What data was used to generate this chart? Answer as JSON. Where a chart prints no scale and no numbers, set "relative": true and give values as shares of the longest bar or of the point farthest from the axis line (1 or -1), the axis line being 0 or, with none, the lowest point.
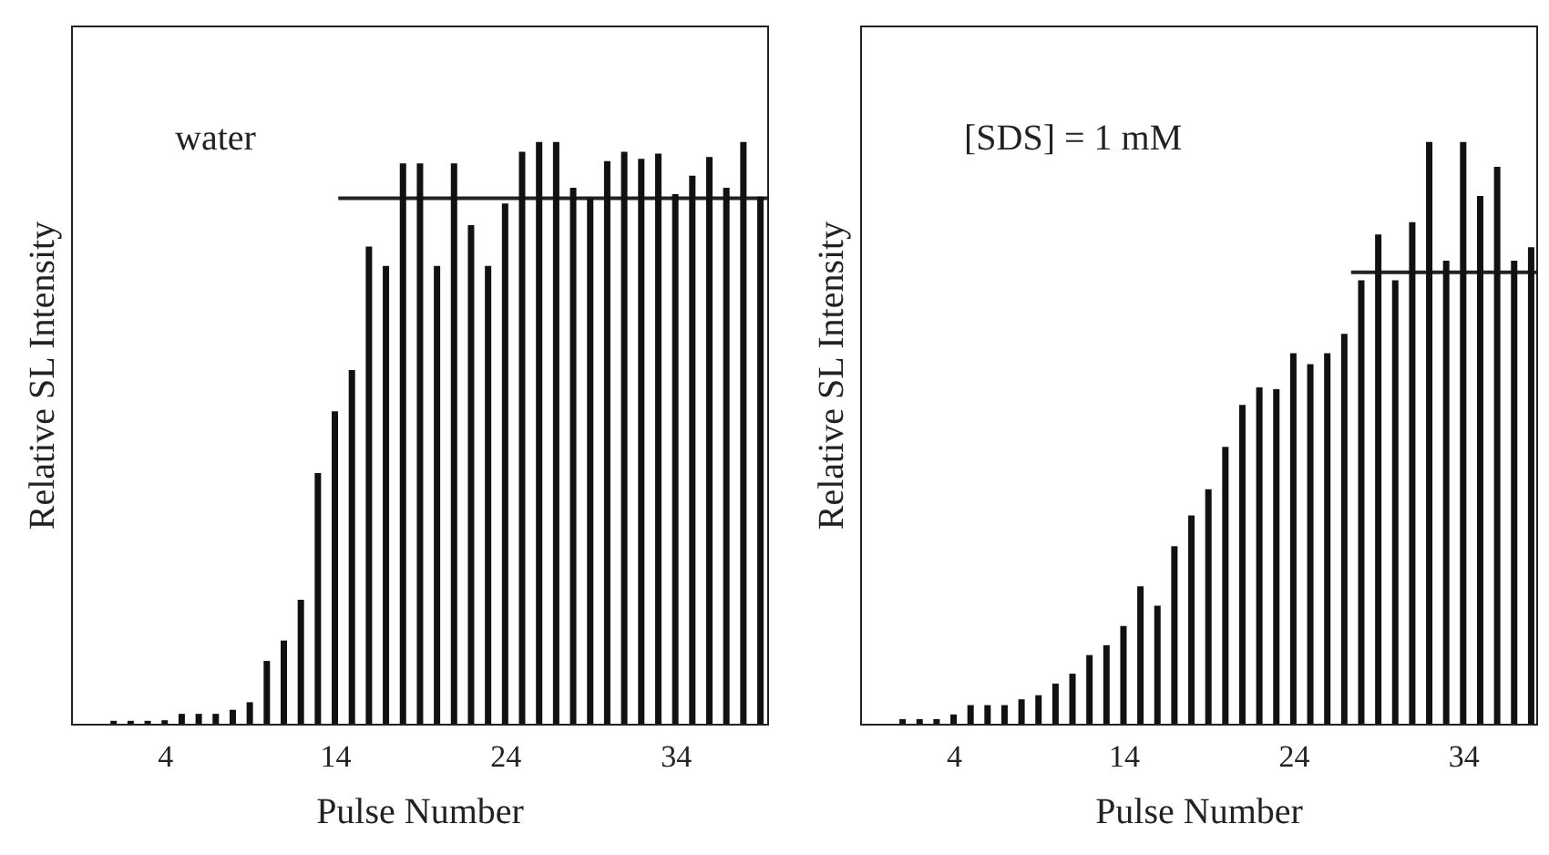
{
  "chart_data": [
    {
      "type": "bar",
      "xlabel": "Pulse Number",
      "ylabel": "Relative SL Intensity",
      "relative": true,
      "annotations": [
        "water"
      ],
      "xlim": [
        -1.5,
        39.4
      ],
      "xticks": [
        4,
        14,
        24,
        34
      ],
      "x": [
        1,
        2,
        3,
        4,
        5,
        6,
        7,
        8,
        9,
        10,
        11,
        12,
        13,
        14,
        15,
        16,
        17,
        18,
        19,
        20,
        21,
        22,
        23,
        24,
        25,
        26,
        27,
        28,
        29,
        30,
        31,
        32,
        33,
        34,
        35,
        36,
        37,
        38,
        39
      ],
      "series": [
        {
          "color": "#111111",
          "values": [
            0.005,
            0.005,
            0.005,
            0.006,
            0.017,
            0.017,
            0.017,
            0.024,
            0.037,
            0.108,
            0.143,
            0.213,
            0.431,
            0.537,
            0.608,
            0.82,
            0.787,
            0.963,
            0.963,
            0.787,
            0.963,
            0.857,
            0.787,
            0.894,
            0.983,
            1,
            1,
            0.921,
            0.903,
            0.967,
            0.983,
            0.971,
            0.98,
            0.91,
            0.942,
            0.974,
            0.921,
            1,
            0.906
          ]
        },
        {
          "type": "line",
          "color": "#222222",
          "x": [
            14.2,
            39.4
          ],
          "values": [
            0.903,
            0.903
          ]
        }
      ]
    },
    {
      "type": "bar",
      "xlabel": "Pulse Number",
      "ylabel": "Relative SL Intensity",
      "relative": true,
      "annotations": [
        "[SDS] = 1 mM"
      ],
      "xlim": [
        -1.5,
        38.3
      ],
      "xticks": [
        4,
        14,
        24,
        34
      ],
      "x": [
        1,
        2,
        3,
        4,
        5,
        6,
        7,
        8,
        9,
        10,
        11,
        12,
        13,
        14,
        15,
        16,
        17,
        18,
        19,
        20,
        21,
        22,
        23,
        24,
        25,
        26,
        27,
        28,
        29,
        30,
        31,
        32,
        33,
        34,
        35,
        36,
        37,
        38
      ],
      "series": [
        {
          "color": "#111111",
          "values": [
            0.008,
            0.008,
            0.008,
            0.016,
            0.032,
            0.032,
            0.032,
            0.042,
            0.049,
            0.069,
            0.086,
            0.118,
            0.135,
            0.168,
            0.236,
            0.203,
            0.305,
            0.358,
            0.403,
            0.476,
            0.548,
            0.578,
            0.575,
            0.637,
            0.618,
            0.637,
            0.67,
            0.762,
            0.841,
            0.762,
            0.862,
            1,
            0.796,
            1,
            0.907,
            0.957,
            0.796,
            0.819
          ]
        },
        {
          "type": "line",
          "color": "#222222",
          "x": [
            27.4,
            38.3
          ],
          "values": [
            0.776,
            0.776
          ]
        }
      ]
    }
  ]
}
